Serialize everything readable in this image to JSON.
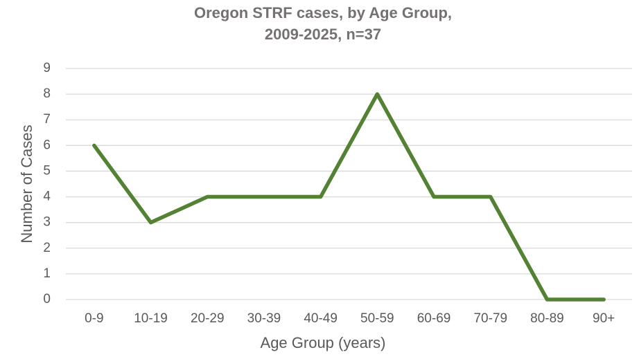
{
  "chart_data": {
    "type": "line",
    "title": [
      "Oregon STRF cases, by Age Group,",
      "2009-2025, n=37"
    ],
    "x_label": "Age Group (years)",
    "y_label": "Number of Cases",
    "categories": [
      "0-9",
      "10-19",
      "20-29",
      "30-39",
      "40-49",
      "50-59",
      "60-69",
      "70-79",
      "80-89",
      "90+"
    ],
    "values": [
      6,
      3,
      4,
      4,
      4,
      8,
      4,
      4,
      0,
      0
    ],
    "color": "#548235",
    "ylim": [
      0,
      9
    ],
    "yticks": [
      0,
      1,
      2,
      3,
      4,
      5,
      6,
      7,
      8,
      9
    ],
    "grid": true
  }
}
